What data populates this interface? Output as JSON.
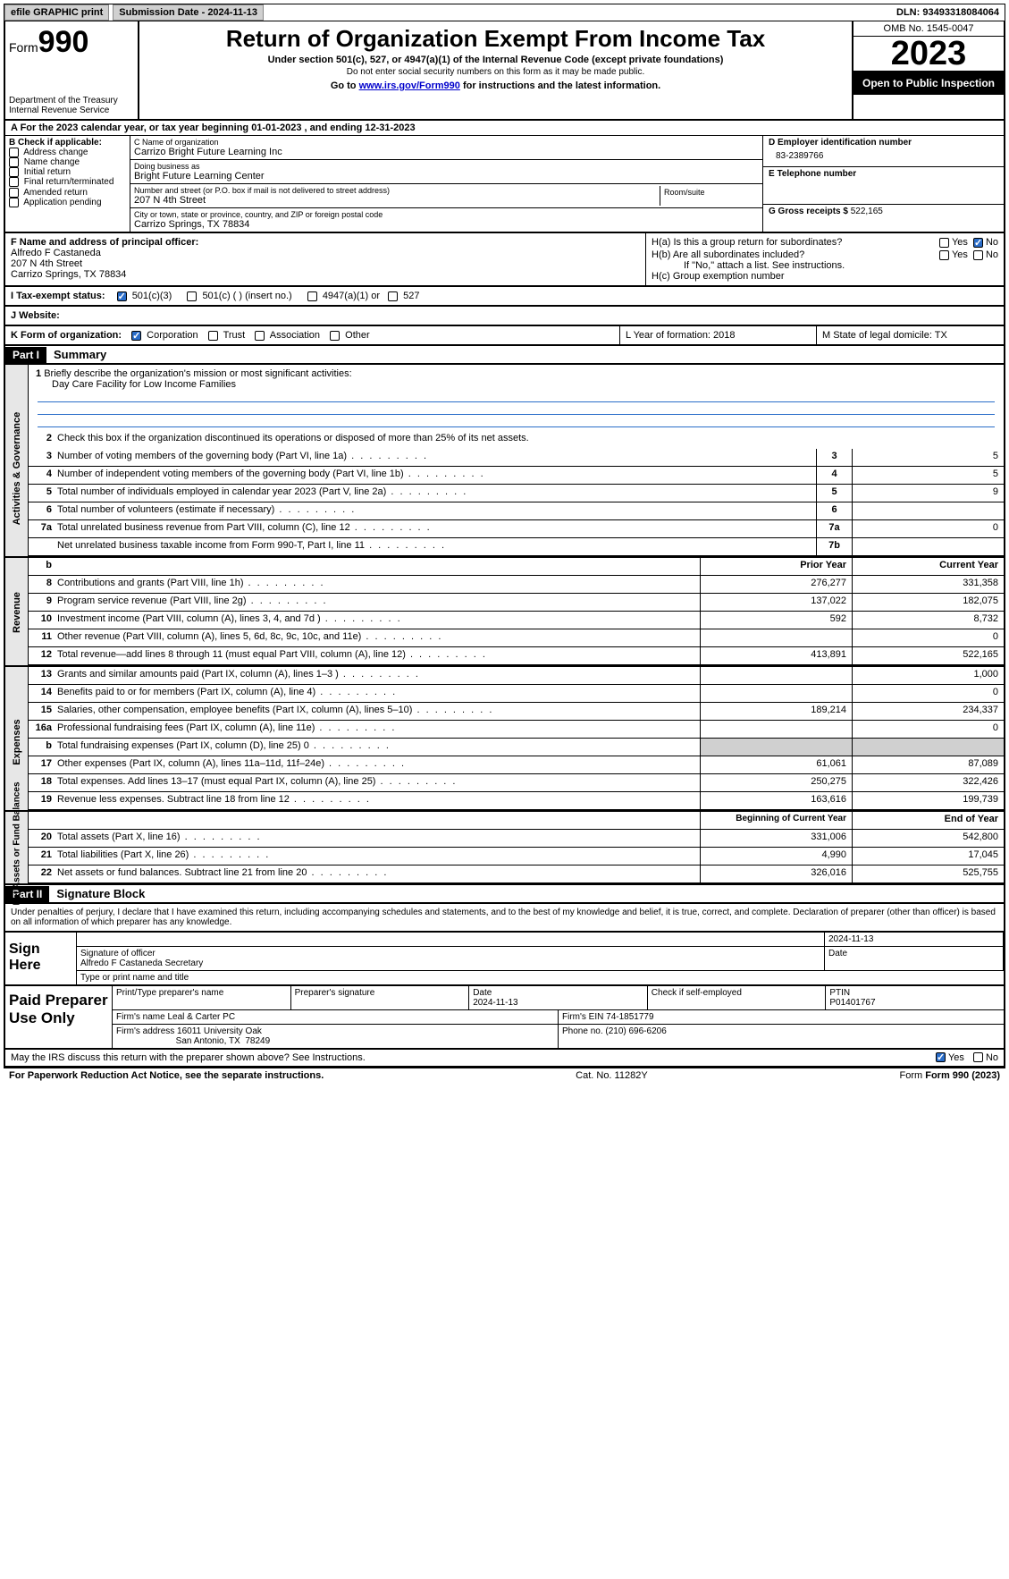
{
  "topbar": {
    "efile": "efile GRAPHIC print",
    "submission": "Submission Date - 2024-11-13",
    "dln": "DLN: 93493318084064"
  },
  "header": {
    "form_label": "Form",
    "form_num": "990",
    "dept": "Department of the Treasury\nInternal Revenue Service",
    "title": "Return of Organization Exempt From Income Tax",
    "sub": "Under section 501(c), 527, or 4947(a)(1) of the Internal Revenue Code (except private foundations)",
    "sub2": "Do not enter social security numbers on this form as it may be made public.",
    "goto_pre": "Go to ",
    "goto_link": "www.irs.gov/Form990",
    "goto_post": " for instructions and the latest information.",
    "omb": "OMB No. 1545-0047",
    "year": "2023",
    "openpub": "Open to Public Inspection"
  },
  "lineA": "A   For the 2023 calendar year, or tax year beginning 01-01-2023    , and ending 12-31-2023",
  "colB": {
    "hdr": "B Check if applicable:",
    "items": [
      "Address change",
      "Name change",
      "Initial return",
      "Final return/terminated",
      "Amended return",
      "Application pending"
    ]
  },
  "colC": {
    "name_lbl": "C Name of organization",
    "name": "Carrizo Bright Future Learning Inc",
    "dba_lbl": "Doing business as",
    "dba": "Bright Future Learning Center",
    "street_lbl": "Number and street (or P.O. box if mail is not delivered to street address)",
    "street": "207 N 4th Street",
    "room_lbl": "Room/suite",
    "city_lbl": "City or town, state or province, country, and ZIP or foreign postal code",
    "city": "Carrizo Springs, TX  78834"
  },
  "colD": {
    "d_lbl": "D Employer identification number",
    "d_val": "83-2389766",
    "e_lbl": "E Telephone number",
    "g_lbl": "G Gross receipts $ ",
    "g_val": "522,165"
  },
  "rowF": {
    "f_lbl": "F  Name and address of principal officer:",
    "f_name": "Alfredo F Castaneda",
    "f_street": "207 N 4th Street",
    "f_city": "Carrizo Springs, TX  78834"
  },
  "rowH": {
    "ha": "H(a)  Is this a group return for subordinates?",
    "hb": "H(b)  Are all subordinates included?",
    "hb_note": "If \"No,\" attach a list. See instructions.",
    "hc": "H(c)  Group exemption number",
    "yes": "Yes",
    "no": "No"
  },
  "rowI": {
    "lbl": "I   Tax-exempt status:",
    "o1": "501(c)(3)",
    "o2": "501(c) (  ) (insert no.)",
    "o3": "4947(a)(1) or",
    "o4": "527"
  },
  "rowJ": {
    "lbl": "J   Website:"
  },
  "rowK": {
    "k_lbl": "K Form of organization:",
    "k1": "Corporation",
    "k2": "Trust",
    "k3": "Association",
    "k4": "Other",
    "l": "L Year of formation: 2018",
    "m": "M State of legal domicile: TX"
  },
  "part1": {
    "hdr": "Part I",
    "title": "Summary"
  },
  "summary": {
    "vtabs": [
      "Activities & Governance",
      "Revenue",
      "Expenses",
      "Net Assets or Fund Balances"
    ],
    "line1_lbl": "Briefly describe the organization's mission or most significant activities:",
    "line1_val": "Day Care Facility for Low Income Families",
    "line2": "Check this box        if the organization discontinued its operations or disposed of more than 25% of its net assets.",
    "gov_rows": [
      {
        "n": "3",
        "d": "Number of voting members of the governing body (Part VI, line 1a)",
        "bn": "3",
        "v": "5"
      },
      {
        "n": "4",
        "d": "Number of independent voting members of the governing body (Part VI, line 1b)",
        "bn": "4",
        "v": "5"
      },
      {
        "n": "5",
        "d": "Total number of individuals employed in calendar year 2023 (Part V, line 2a)",
        "bn": "5",
        "v": "9"
      },
      {
        "n": "6",
        "d": "Total number of volunteers (estimate if necessary)",
        "bn": "6",
        "v": ""
      },
      {
        "n": "7a",
        "d": "Total unrelated business revenue from Part VIII, column (C), line 12",
        "bn": "7a",
        "v": "0"
      },
      {
        "n": "",
        "d": "Net unrelated business taxable income from Form 990-T, Part I, line 11",
        "bn": "7b",
        "v": ""
      }
    ],
    "col_prior": "Prior Year",
    "col_current": "Current Year",
    "rev_rows": [
      {
        "n": "8",
        "d": "Contributions and grants (Part VIII, line 1h)",
        "p": "276,277",
        "c": "331,358"
      },
      {
        "n": "9",
        "d": "Program service revenue (Part VIII, line 2g)",
        "p": "137,022",
        "c": "182,075"
      },
      {
        "n": "10",
        "d": "Investment income (Part VIII, column (A), lines 3, 4, and 7d )",
        "p": "592",
        "c": "8,732"
      },
      {
        "n": "11",
        "d": "Other revenue (Part VIII, column (A), lines 5, 6d, 8c, 9c, 10c, and 11e)",
        "p": "",
        "c": "0"
      },
      {
        "n": "12",
        "d": "Total revenue—add lines 8 through 11 (must equal Part VIII, column (A), line 12)",
        "p": "413,891",
        "c": "522,165"
      }
    ],
    "exp_rows": [
      {
        "n": "13",
        "d": "Grants and similar amounts paid (Part IX, column (A), lines 1–3 )",
        "p": "",
        "c": "1,000"
      },
      {
        "n": "14",
        "d": "Benefits paid to or for members (Part IX, column (A), line 4)",
        "p": "",
        "c": "0"
      },
      {
        "n": "15",
        "d": "Salaries, other compensation, employee benefits (Part IX, column (A), lines 5–10)",
        "p": "189,214",
        "c": "234,337"
      },
      {
        "n": "16a",
        "d": "Professional fundraising fees (Part IX, column (A), line 11e)",
        "p": "",
        "c": "0"
      },
      {
        "n": "b",
        "d": "Total fundraising expenses (Part IX, column (D), line 25) 0",
        "p": "shade",
        "c": "shade"
      },
      {
        "n": "17",
        "d": "Other expenses (Part IX, column (A), lines 11a–11d, 11f–24e)",
        "p": "61,061",
        "c": "87,089"
      },
      {
        "n": "18",
        "d": "Total expenses. Add lines 13–17 (must equal Part IX, column (A), line 25)",
        "p": "250,275",
        "c": "322,426"
      },
      {
        "n": "19",
        "d": "Revenue less expenses. Subtract line 18 from line 12",
        "p": "163,616",
        "c": "199,739"
      }
    ],
    "col_begin": "Beginning of Current Year",
    "col_end": "End of Year",
    "na_rows": [
      {
        "n": "20",
        "d": "Total assets (Part X, line 16)",
        "p": "331,006",
        "c": "542,800"
      },
      {
        "n": "21",
        "d": "Total liabilities (Part X, line 26)",
        "p": "4,990",
        "c": "17,045"
      },
      {
        "n": "22",
        "d": "Net assets or fund balances. Subtract line 21 from line 20",
        "p": "326,016",
        "c": "525,755"
      }
    ]
  },
  "part2": {
    "hdr": "Part II",
    "title": "Signature Block"
  },
  "sig_decl": "Under penalties of perjury, I declare that I have examined this return, including accompanying schedules and statements, and to the best of my knowledge and belief, it is true, correct, and complete. Declaration of preparer (other than officer) is based on all information of which preparer has any knowledge.",
  "sign": {
    "lbl": "Sign Here",
    "sig_of_officer": "Signature of officer",
    "date_lbl": "Date",
    "date": "2024-11-13",
    "name": "Alfredo F Castaneda  Secretary",
    "type_lbl": "Type or print name and title"
  },
  "paid": {
    "lbl": "Paid Preparer Use Only",
    "r1": {
      "c1": "Print/Type preparer's name",
      "c2": "Preparer's signature",
      "c3": "Date\n2024-11-13",
      "c4": "Check          if self-employed",
      "c5": "PTIN\nP01401767"
    },
    "r2": {
      "c1": "Firm's name      Leal & Carter PC",
      "c2": "Firm's EIN  74-1851779"
    },
    "r3": {
      "c1": "Firm's address 16011 University Oak",
      "c2": "Phone no. (210) 696-6206"
    },
    "r3b": "                        San Antonio, TX  78249"
  },
  "discuss": {
    "q": "May the IRS discuss this return with the preparer shown above? See Instructions.",
    "yes": "Yes",
    "no": "No"
  },
  "footer": {
    "l": "For Paperwork Reduction Act Notice, see the separate instructions.",
    "m": "Cat. No. 11282Y",
    "r": "Form 990 (2023)"
  }
}
